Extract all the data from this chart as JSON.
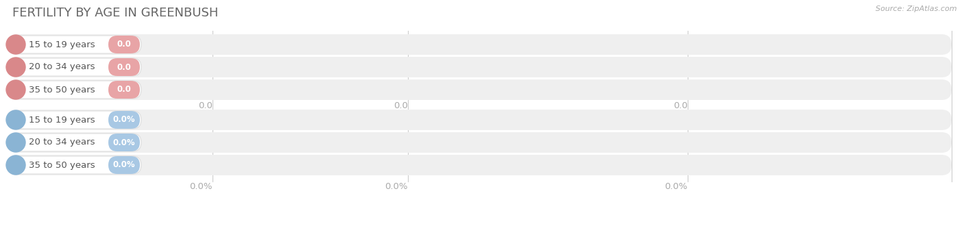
{
  "title": "FERTILITY BY AGE IN GREENBUSH",
  "source": "Source: ZipAtlas.com",
  "top_section_labels": [
    "15 to 19 years",
    "20 to 34 years",
    "35 to 50 years"
  ],
  "top_section_value_labels": [
    "0.0",
    "0.0",
    "0.0"
  ],
  "bottom_section_labels": [
    "15 to 19 years",
    "20 to 34 years",
    "35 to 50 years"
  ],
  "bottom_section_value_labels": [
    "0.0%",
    "0.0%",
    "0.0%"
  ],
  "top_circle_color": "#d9888a",
  "top_value_pill_color": "#e8a4a6",
  "bottom_circle_color": "#8ab4d4",
  "bottom_value_pill_color": "#a8c8e4",
  "bar_bg_color": "#efefef",
  "title_color": "#666666",
  "source_color": "#aaaaaa",
  "tick_color": "#aaaaaa",
  "label_text_color": "#555555",
  "value_text_color_top": "#ffffff",
  "value_text_color_bottom": "#ffffff",
  "background_color": "#ffffff",
  "top_tick_labels": [
    "0.0",
    "0.0",
    "0.0"
  ],
  "bottom_tick_labels": [
    "0.0%",
    "0.0%",
    "0.0%"
  ]
}
